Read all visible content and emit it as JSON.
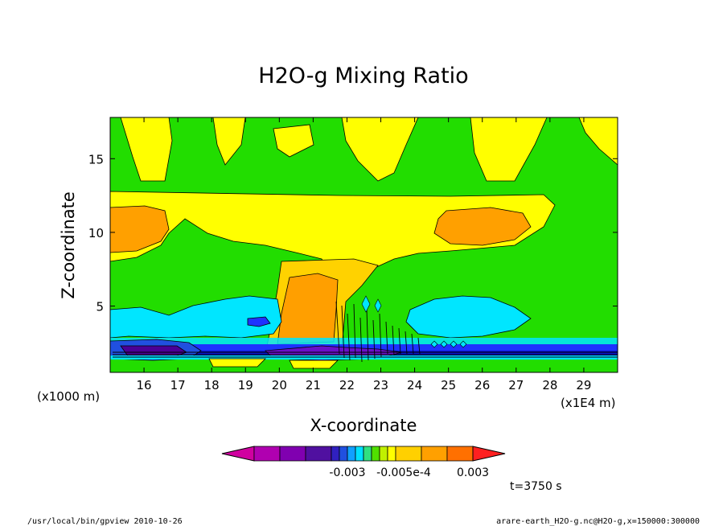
{
  "chart_data": {
    "type": "heatmap",
    "title": "H2O-g Mixing Ratio",
    "xlabel": "X-coordinate",
    "ylabel": "Z-coordinate",
    "x_unit_label": "(x1000 m)",
    "x_scale_label": "(x1E4 m)",
    "x_ticks": [
      "16",
      "17",
      "18",
      "19",
      "20",
      "21",
      "22",
      "23",
      "24",
      "25",
      "26",
      "27",
      "28",
      "29"
    ],
    "x_tick_values": [
      16,
      17,
      18,
      19,
      20,
      21,
      22,
      23,
      24,
      25,
      26,
      27,
      28,
      29
    ],
    "y_ticks": [
      "5",
      "10",
      "15"
    ],
    "y_tick_values": [
      5,
      10,
      15
    ],
    "xlim": [
      15,
      30
    ],
    "ylim": [
      0.5,
      17.8
    ],
    "colorbar": {
      "labels": [
        "-0.003",
        "-0.005e-4",
        "0.003"
      ],
      "colors": [
        "#d000a0",
        "#b000b0",
        "#8000b0",
        "#5010a0",
        "#3020c0",
        "#2050e0",
        "#10a0ff",
        "#00e0ff",
        "#30e080",
        "#50e000",
        "#c0f000",
        "#ffff00",
        "#ffd000",
        "#ffa000",
        "#ff7000",
        "#ff2020"
      ]
    },
    "time_label": "t=3750 s",
    "colors": {
      "green": "#22dd00",
      "yellow": "#ffff00",
      "lightorange": "#ffd200",
      "orange": "#ff9f00",
      "cyan": "#00e6ff",
      "blue": "#1e32ff",
      "darkblue": "#0a14c8",
      "purple": "#6a10c8",
      "violet": "#4b0096"
    }
  },
  "footer": {
    "left": "/usr/local/bin/gpview  2010-10-26",
    "right": "arare-earth_H2O-g.nc@H2O-g,x=150000:300000"
  }
}
